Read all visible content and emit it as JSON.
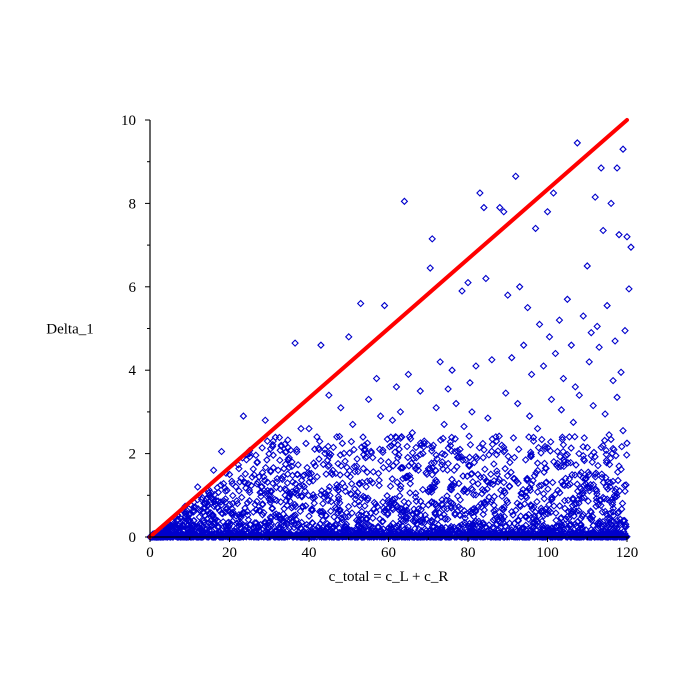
{
  "chart_data": {
    "type": "scatter",
    "title": "",
    "xlabel": "c_total = c_L + c_R",
    "ylabel": "Delta_1",
    "xlim": [
      0,
      120
    ],
    "ylim": [
      0,
      10
    ],
    "x_ticks": [
      "0",
      "20",
      "40",
      "60",
      "80",
      "100",
      "120"
    ],
    "y_ticks": [
      "0",
      "2",
      "4",
      "6",
      "8",
      "10"
    ],
    "grid": false,
    "legend": "none",
    "series": [
      {
        "style": "line",
        "color": "#ff0000",
        "x": [
          0,
          120
        ],
        "y": [
          0,
          10
        ]
      },
      {
        "style": "diamond-markers",
        "color": "#0000cc",
        "x": [
          23.5,
          29,
          36.5,
          43,
          50,
          53,
          59,
          64,
          70.5,
          71,
          83,
          84,
          88,
          89,
          92,
          97,
          100,
          101.5,
          107.5,
          112,
          113.5,
          116,
          117.5,
          119,
          120,
          120.5,
          110,
          114,
          118,
          121,
          76,
          78.5,
          80,
          84.5,
          90,
          93,
          95,
          98,
          100.5,
          103,
          105,
          106,
          109,
          111,
          112.5,
          115,
          117,
          119.5,
          38,
          42,
          45,
          48,
          55,
          57,
          62,
          65,
          68,
          73,
          75,
          77,
          80.5,
          82,
          86,
          89.5,
          91,
          94,
          96,
          99,
          102,
          104,
          107,
          110.5,
          113,
          116.5,
          118.5,
          12,
          16,
          18,
          20,
          25,
          27,
          31,
          33,
          35,
          40,
          44,
          47,
          51,
          54,
          58,
          61,
          63,
          66,
          69,
          72,
          74,
          79,
          81,
          85,
          87,
          92.5,
          95.5,
          97.5,
          101,
          103.5,
          106.5,
          108,
          111.5,
          114.5,
          117.5,
          119,
          5,
          7,
          9,
          10,
          13,
          15,
          17,
          19,
          22,
          24,
          26,
          28,
          30,
          32,
          34,
          37,
          39,
          41,
          43.5,
          46,
          49,
          52,
          56,
          60,
          64.5,
          67,
          70,
          73.5,
          76.5,
          78,
          82.5,
          86.5,
          88.5,
          91.5,
          94.5,
          96.5,
          99.5,
          102.5,
          105.5,
          108.5,
          111,
          113.5,
          115.5,
          118,
          120
        ],
        "y": [
          2.9,
          2.8,
          4.65,
          4.6,
          4.8,
          5.6,
          5.55,
          8.05,
          6.45,
          7.15,
          8.25,
          7.9,
          7.9,
          7.8,
          8.65,
          7.4,
          7.8,
          8.25,
          9.45,
          8.15,
          8.85,
          8.0,
          8.85,
          9.3,
          7.2,
          5.95,
          6.5,
          7.35,
          7.25,
          6.95,
          4.0,
          5.9,
          6.1,
          6.2,
          5.8,
          6.0,
          5.5,
          5.1,
          4.8,
          5.2,
          5.7,
          4.6,
          5.3,
          4.9,
          5.05,
          5.55,
          4.7,
          4.95,
          2.6,
          2.4,
          3.4,
          3.1,
          3.3,
          3.8,
          3.6,
          3.9,
          3.5,
          4.2,
          3.55,
          3.2,
          3.7,
          4.1,
          4.25,
          3.45,
          4.3,
          4.6,
          3.9,
          4.1,
          4.4,
          3.8,
          3.6,
          4.2,
          4.55,
          3.75,
          3.95,
          1.2,
          1.6,
          2.05,
          1.5,
          2.0,
          1.8,
          2.3,
          2.2,
          1.9,
          2.6,
          2.1,
          2.4,
          2.7,
          2.2,
          2.9,
          2.8,
          3.0,
          2.5,
          2.3,
          3.1,
          2.7,
          2.65,
          3.0,
          2.85,
          2.4,
          3.2,
          2.9,
          2.6,
          3.3,
          3.05,
          2.75,
          3.4,
          3.15,
          2.95,
          3.35,
          2.55,
          0.3,
          0.5,
          0.6,
          0.4,
          0.9,
          1.0,
          0.7,
          1.1,
          0.8,
          1.3,
          0.6,
          1.2,
          0.9,
          1.4,
          1.0,
          1.5,
          1.1,
          1.35,
          0.8,
          1.6,
          1.2,
          1.7,
          1.3,
          1.8,
          1.45,
          1.9,
          1.1,
          2.0,
          1.6,
          2.1,
          1.5,
          1.75,
          2.2,
          1.4,
          1.85,
          2.3,
          1.65,
          2.05,
          2.4,
          1.55,
          1.95,
          2.15,
          2.45,
          1.7,
          2.25
        ]
      }
    ],
    "marker_cloud": {
      "description_source": "dense band of small blue diamonds near zero across the whole x range",
      "color": "#0000cc"
    }
  }
}
